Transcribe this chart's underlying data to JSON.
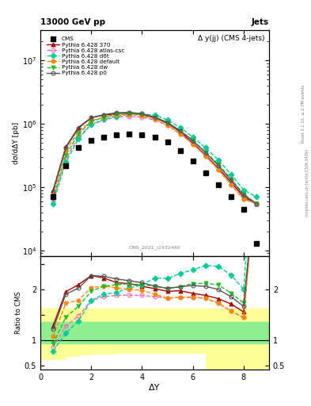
{
  "title_top": "13000 GeV pp",
  "title_right": "Jets",
  "plot_title": "Δ y(jj) (CMS 4-jets)",
  "ylabel_main": "dσ/dΔY [pb]",
  "ylabel_ratio": "Ratio to CMS",
  "xlabel": "ΔY",
  "watermark": "CMS_2021_I1932460",
  "rivet_label": "Rivet 3.1.10, ≥ 2.7M events",
  "mcplots_label": "mcplots.cern.ch [arXiv:1306.3436]",
  "cms_x": [
    0.5,
    1.0,
    1.5,
    2.0,
    2.5,
    3.0,
    3.5,
    4.0,
    4.5,
    5.0,
    5.5,
    6.0,
    6.5,
    7.0,
    7.5,
    8.0,
    8.5
  ],
  "cms_y": [
    70000.0,
    220000.0,
    420000.0,
    550000.0,
    620000.0,
    680000.0,
    700000.0,
    680000.0,
    620000.0,
    520000.0,
    380000.0,
    260000.0,
    170000.0,
    110000.0,
    70000.0,
    45000.0,
    13000.0
  ],
  "p370_x": [
    0.5,
    1.0,
    1.5,
    2.0,
    2.5,
    3.0,
    3.5,
    4.0,
    4.5,
    5.0,
    5.5,
    6.0,
    6.5,
    7.0,
    7.5,
    8.0,
    8.5
  ],
  "p370_y": [
    90000.0,
    430000.0,
    880000.0,
    1250000.0,
    1380000.0,
    1450000.0,
    1480000.0,
    1400000.0,
    1250000.0,
    1020000.0,
    750000.0,
    500000.0,
    320000.0,
    200000.0,
    120000.0,
    70000.0,
    55000.0
  ],
  "p370_color": "#aa0000",
  "p370_marker": "^",
  "p370_label": "Pythia 6.428 370",
  "p370_style": "-",
  "p370_mfc": "#aa0000",
  "patlas_x": [
    0.5,
    1.0,
    1.5,
    2.0,
    2.5,
    3.0,
    3.5,
    4.0,
    4.5,
    5.0,
    5.5,
    6.0,
    6.5,
    7.0,
    7.5,
    8.0,
    8.5
  ],
  "patlas_y": [
    60000.0,
    280000.0,
    620000.0,
    980000.0,
    1150000.0,
    1280000.0,
    1320000.0,
    1280000.0,
    1150000.0,
    950000.0,
    700000.0,
    480000.0,
    310000.0,
    190000.0,
    110000.0,
    65000.0,
    55000.0
  ],
  "patlas_color": "#ff69b4",
  "patlas_marker": "o",
  "patlas_label": "Pythia 6.428 atlas-csc",
  "patlas_style": "--",
  "patlas_mfc": "none",
  "pd6t_x": [
    0.5,
    1.0,
    1.5,
    2.0,
    2.5,
    3.0,
    3.5,
    4.0,
    4.5,
    5.0,
    5.5,
    6.0,
    6.5,
    7.0,
    7.5,
    8.0,
    8.5
  ],
  "pd6t_y": [
    55000.0,
    250000.0,
    580000.0,
    980000.0,
    1180000.0,
    1320000.0,
    1420000.0,
    1420000.0,
    1380000.0,
    1150000.0,
    880000.0,
    620000.0,
    420000.0,
    270000.0,
    160000.0,
    90000.0,
    70000.0
  ],
  "pd6t_color": "#00cc99",
  "pd6t_marker": "D",
  "pd6t_label": "Pythia 6.428 d6t",
  "pd6t_style": "--",
  "pd6t_mfc": "#00cc99",
  "pdef_x": [
    0.5,
    1.0,
    1.5,
    2.0,
    2.5,
    3.0,
    3.5,
    4.0,
    4.5,
    5.0,
    5.5,
    6.0,
    6.5,
    7.0,
    7.5,
    8.0,
    8.5
  ],
  "pdef_y": [
    75000.0,
    380000.0,
    750000.0,
    1120000.0,
    1280000.0,
    1380000.0,
    1400000.0,
    1350000.0,
    1180000.0,
    950000.0,
    700000.0,
    480000.0,
    310000.0,
    190000.0,
    110000.0,
    65000.0,
    55000.0
  ],
  "pdef_color": "#ff8800",
  "pdef_marker": "o",
  "pdef_label": "Pythia 6.428 default",
  "pdef_style": "--",
  "pdef_mfc": "#ff8800",
  "pdw_x": [
    0.5,
    1.0,
    1.5,
    2.0,
    2.5,
    3.0,
    3.5,
    4.0,
    4.5,
    5.0,
    5.5,
    6.0,
    6.5,
    7.0,
    7.5,
    8.0,
    8.5
  ],
  "pdw_y": [
    65000.0,
    320000.0,
    700000.0,
    1080000.0,
    1280000.0,
    1420000.0,
    1480000.0,
    1420000.0,
    1280000.0,
    1050000.0,
    780000.0,
    550000.0,
    360000.0,
    230000.0,
    135000.0,
    78000.0,
    55000.0
  ],
  "pdw_color": "#22bb22",
  "pdw_marker": "v",
  "pdw_label": "Pythia 6.428 dw",
  "pdw_style": "--",
  "pdw_mfc": "#22bb22",
  "pp0_x": [
    0.5,
    1.0,
    1.5,
    2.0,
    2.5,
    3.0,
    3.5,
    4.0,
    4.5,
    5.0,
    5.5,
    6.0,
    6.5,
    7.0,
    7.5,
    8.0,
    8.5
  ],
  "pp0_y": [
    85000.0,
    420000.0,
    850000.0,
    1250000.0,
    1400000.0,
    1500000.0,
    1520000.0,
    1450000.0,
    1280000.0,
    1050000.0,
    780000.0,
    540000.0,
    350000.0,
    220000.0,
    130000.0,
    75000.0,
    55000.0
  ],
  "pp0_color": "#555555",
  "pp0_marker": "o",
  "pp0_label": "Pythia 6.428 p0",
  "pp0_style": "-",
  "pp0_mfc": "none",
  "ylim_main": [
    8000.0,
    30000000.0
  ],
  "ratio_ylim": [
    0.42,
    2.65
  ],
  "ratio_yticks": [
    0.5,
    1.0,
    1.5,
    2.0,
    2.5
  ],
  "ratio_yticklabels": [
    "0.5",
    "1",
    "",
    "2",
    ""
  ],
  "ratio_yticks_r": [
    0.5,
    1.0,
    2.0
  ],
  "ratio_yticklabels_r": [
    "0.5",
    "1",
    "2"
  ],
  "green_band_lo": 0.93,
  "green_band_hi": 1.35,
  "green_color": "#90ee90",
  "yellow_edges_x": [
    0.0,
    0.5,
    1.0,
    1.5,
    2.0,
    3.0,
    5.0,
    6.5,
    9.0
  ],
  "yellow_lo": [
    0.63,
    0.63,
    0.68,
    0.72,
    0.73,
    0.74,
    0.74,
    0.42,
    0.42
  ],
  "yellow_hi": [
    1.62,
    1.62,
    1.62,
    1.62,
    1.62,
    1.62,
    1.62,
    1.62,
    1.62
  ],
  "yellow_color": "#ffff99"
}
